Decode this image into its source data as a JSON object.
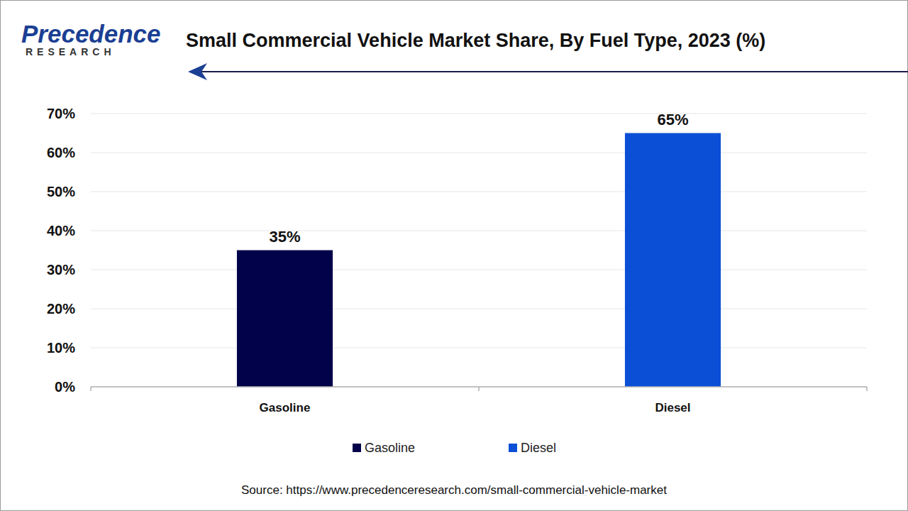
{
  "logo": {
    "name": "Precedence",
    "tagline": "RESEARCH"
  },
  "chart_data": {
    "type": "bar",
    "title": "Small Commercial Vehicle Market Share, By Fuel Type, 2023 (%)",
    "source": "Source: https://www.precedenceresearch.com/small-commercial-vehicle-market",
    "categories": [
      "Gasoline",
      "Diesel"
    ],
    "values": [
      35,
      65
    ],
    "value_labels": [
      "35%",
      "65%"
    ],
    "colors": [
      "#02024a",
      "#0a4fd6"
    ],
    "ylim": [
      0,
      70
    ],
    "yticks": [
      {
        "value": 0,
        "label": "0%"
      },
      {
        "value": 10,
        "label": "10%"
      },
      {
        "value": 20,
        "label": "20%"
      },
      {
        "value": 30,
        "label": "30%"
      },
      {
        "value": 40,
        "label": "40%"
      },
      {
        "value": 50,
        "label": "50%"
      },
      {
        "value": 60,
        "label": "60%"
      },
      {
        "value": 70,
        "label": "70%"
      }
    ],
    "grid": true,
    "data_labels": true,
    "legend": "bottom"
  }
}
